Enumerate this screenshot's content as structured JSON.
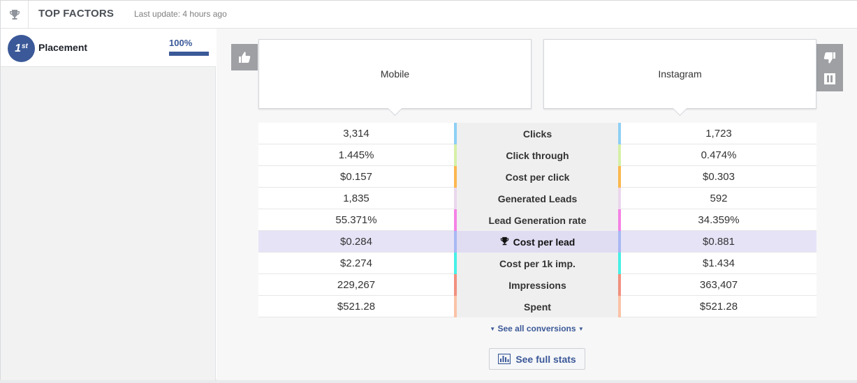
{
  "header": {
    "title": "TOP FACTORS",
    "last_update": "Last update: 4 hours ago"
  },
  "sidebar": {
    "items": [
      {
        "rank": "1",
        "rank_suffix": "st",
        "label": "Placement",
        "percent_text": "100%",
        "percent": 100
      }
    ]
  },
  "comparison": {
    "left": {
      "name": "Mobile"
    },
    "right": {
      "name": "Instagram"
    },
    "metrics": [
      {
        "label": "Clicks",
        "left": "3,314",
        "right": "1,723",
        "color": "#8fd0f5",
        "highlight": false
      },
      {
        "label": "Click through",
        "left": "1.445%",
        "right": "0.474%",
        "color": "#d6f0a8",
        "highlight": false
      },
      {
        "label": "Cost per click",
        "left": "$0.157",
        "right": "$0.303",
        "color": "#fbb74f",
        "highlight": false
      },
      {
        "label": "Generated Leads",
        "left": "1,835",
        "right": "592",
        "color": "#ead7ec",
        "highlight": false
      },
      {
        "label": "Lead Generation rate",
        "left": "55.371%",
        "right": "34.359%",
        "color": "#f582e6",
        "highlight": false
      },
      {
        "label": "Cost per lead",
        "left": "$0.284",
        "right": "$0.881",
        "color": "#a9b8f3",
        "highlight": true
      },
      {
        "label": "Cost per 1k imp.",
        "left": "$2.274",
        "right": "$1.434",
        "color": "#47f0e6",
        "highlight": false
      },
      {
        "label": "Impressions",
        "left": "229,267",
        "right": "363,407",
        "color": "#f1907f",
        "highlight": false
      },
      {
        "label": "Spent",
        "left": "$521.28",
        "right": "$521.28",
        "color": "#fbc3a8",
        "highlight": false
      }
    ]
  },
  "actions": {
    "see_all": "See all conversions",
    "full_stats": "See full stats"
  },
  "colors": {
    "accent": "#3b5998",
    "button_gray": "#9ea0a4"
  },
  "icons": {
    "header": "trophy-icon",
    "like": "thumbs-up-icon",
    "dislike": "thumbs-down-icon",
    "pause": "pause-icon",
    "stats": "bar-chart-icon"
  }
}
